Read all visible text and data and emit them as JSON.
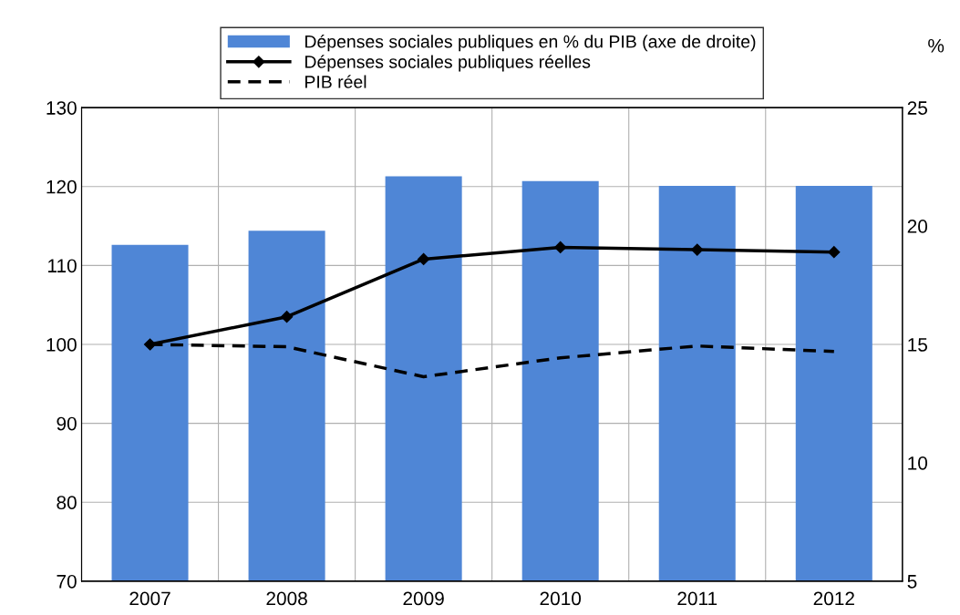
{
  "chart_data": {
    "type": "bar",
    "categories": [
      "2007",
      "2008",
      "2009",
      "2010",
      "2011",
      "2012"
    ],
    "series": [
      {
        "name": "Dépenses sociales publiques en % du PIB (axe de droite)",
        "axis": "y2",
        "color": "#4f86d6",
        "values": [
          19.2,
          19.8,
          22.1,
          21.9,
          21.7,
          21.7
        ]
      },
      {
        "name": "Dépenses sociales publiques réelles",
        "type": "line",
        "color": "#000000",
        "marker": "diamond",
        "line_style": "solid",
        "values": [
          100,
          103.5,
          110.8,
          112.3,
          112.0,
          111.7
        ]
      },
      {
        "name": "PIB réel",
        "type": "line",
        "color": "#000000",
        "marker": "none",
        "line_style": "dashed",
        "values": [
          100,
          99.7,
          95.9,
          98.3,
          99.8,
          99.1
        ]
      }
    ],
    "y2label": "%",
    "ylim": [
      70,
      130
    ],
    "yticks": [
      70,
      80,
      90,
      100,
      110,
      120,
      130
    ],
    "y2lim": [
      5,
      25
    ],
    "y2ticks": [
      5,
      10,
      15,
      20,
      25
    ],
    "grid": true,
    "legend": "top"
  }
}
